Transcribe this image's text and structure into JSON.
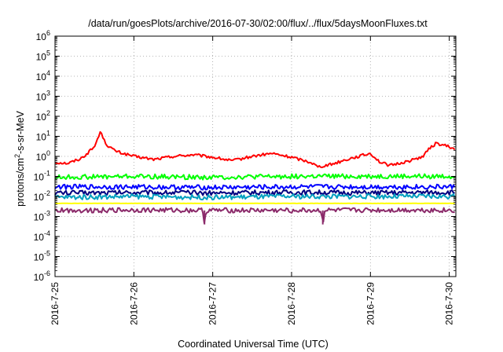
{
  "chart_data": {
    "type": "line",
    "title": "/data/run/goesPlots/archive/2016-07-30/02:00/flux/../flux/5daysMoonFluxes.txt",
    "xlabel": "Coordinated Universal Time (UTC)",
    "ylabel": {
      "base": "protons/cm",
      "sup": "2",
      "rest": "-s-sr-MeV"
    },
    "yscale": "log",
    "ylim": [
      1e-06,
      1000000.0
    ],
    "y_ticks": [
      {
        "value": 1e-06,
        "base": "10",
        "exp": "-6"
      },
      {
        "value": 1e-05,
        "base": "10",
        "exp": "-5"
      },
      {
        "value": 0.0001,
        "base": "10",
        "exp": "-4"
      },
      {
        "value": 0.001,
        "base": "10",
        "exp": "-3"
      },
      {
        "value": 0.01,
        "base": "10",
        "exp": "-2"
      },
      {
        "value": 0.1,
        "base": "10",
        "exp": "-1"
      },
      {
        "value": 1,
        "base": "10",
        "exp": "0"
      },
      {
        "value": 10,
        "base": "10",
        "exp": "1"
      },
      {
        "value": 100,
        "base": "10",
        "exp": "2"
      },
      {
        "value": 1000,
        "base": "10",
        "exp": "3"
      },
      {
        "value": 10000,
        "base": "10",
        "exp": "4"
      },
      {
        "value": 100000,
        "base": "10",
        "exp": "5"
      },
      {
        "value": 1000000,
        "base": "10",
        "exp": "6"
      }
    ],
    "xlim": [
      "2016-07-25 00:00",
      "2016-07-30 02:00"
    ],
    "x_ticks": [
      "2016-7-25",
      "2016-7-26",
      "2016-7-27",
      "2016-7-28",
      "2016-7-29",
      "2016-7-30"
    ],
    "grid": true,
    "series": [
      {
        "color": "#ff0000",
        "times": [
          "2016-07-25 00:00",
          "2016-07-25 04:00",
          "2016-07-25 08:00",
          "2016-07-25 10:00",
          "2016-07-25 12:00",
          "2016-07-25 13:00",
          "2016-07-25 14:00",
          "2016-07-25 15:00",
          "2016-07-25 16:00",
          "2016-07-25 18:00",
          "2016-07-25 20:00",
          "2016-07-26 00:00",
          "2016-07-26 06:00",
          "2016-07-26 12:00",
          "2016-07-26 18:00",
          "2016-07-27 00:00",
          "2016-07-27 06:00",
          "2016-07-27 12:00",
          "2016-07-27 18:00",
          "2016-07-28 00:00",
          "2016-07-28 06:00",
          "2016-07-28 08:00",
          "2016-07-28 12:00",
          "2016-07-28 18:00",
          "2016-07-29 00:00",
          "2016-07-29 03:00",
          "2016-07-29 06:00",
          "2016-07-29 12:00",
          "2016-07-29 16:00",
          "2016-07-29 18:00",
          "2016-07-29 20:00",
          "2016-07-30 00:00",
          "2016-07-30 02:00"
        ],
        "values": [
          0.5,
          0.45,
          0.8,
          1.5,
          3.0,
          8.0,
          18.0,
          6.0,
          3.5,
          2.0,
          1.5,
          1.0,
          0.7,
          1.0,
          1.2,
          0.9,
          0.6,
          1.0,
          1.4,
          0.9,
          0.5,
          0.3,
          0.4,
          0.8,
          1.4,
          0.5,
          0.35,
          0.6,
          1.0,
          2.5,
          4.5,
          3.0,
          2.0
        ]
      },
      {
        "color": "#00ff00",
        "times": [
          "2016-07-25 00:00",
          "2016-07-26 00:00",
          "2016-07-27 00:00",
          "2016-07-28 00:00",
          "2016-07-29 00:00",
          "2016-07-30 02:00"
        ],
        "values": [
          0.09,
          0.1,
          0.09,
          0.1,
          0.1,
          0.1
        ]
      },
      {
        "color": "#0000ff",
        "times": [
          "2016-07-25 00:00",
          "2016-07-26 00:00",
          "2016-07-27 00:00",
          "2016-07-28 00:00",
          "2016-07-29 00:00",
          "2016-07-30 02:00"
        ],
        "values": [
          0.03,
          0.03,
          0.028,
          0.03,
          0.03,
          0.03
        ]
      },
      {
        "color": "#000080",
        "times": [
          "2016-07-25 00:00",
          "2016-07-26 00:00",
          "2016-07-27 00:00",
          "2016-07-28 00:00",
          "2016-07-29 00:00",
          "2016-07-30 02:00"
        ],
        "values": [
          0.015,
          0.016,
          0.015,
          0.016,
          0.015,
          0.016
        ]
      },
      {
        "color": "#00a0c0",
        "times": [
          "2016-07-25 00:00",
          "2016-07-26 00:00",
          "2016-07-27 00:00",
          "2016-07-28 00:00",
          "2016-07-29 00:00",
          "2016-07-30 02:00"
        ],
        "values": [
          0.009,
          0.01,
          0.009,
          0.01,
          0.01,
          0.01
        ]
      },
      {
        "color": "#ffff00",
        "times": [
          "2016-07-25 00:00",
          "2016-07-30 02:00"
        ],
        "values": [
          0.0045,
          0.0045
        ]
      },
      {
        "color": "#8b2a6a",
        "times": [
          "2016-07-25 00:00",
          "2016-07-26 00:00",
          "2016-07-26 21:00",
          "2016-07-26 21:30",
          "2016-07-26 22:00",
          "2016-07-27 12:00",
          "2016-07-28 09:00",
          "2016-07-28 09:30",
          "2016-07-28 10:00",
          "2016-07-29 12:00",
          "2016-07-30 02:00"
        ],
        "values": [
          0.002,
          0.0021,
          0.002,
          0.0004,
          0.002,
          0.002,
          0.002,
          0.0004,
          0.002,
          0.0021,
          0.002
        ]
      }
    ]
  }
}
